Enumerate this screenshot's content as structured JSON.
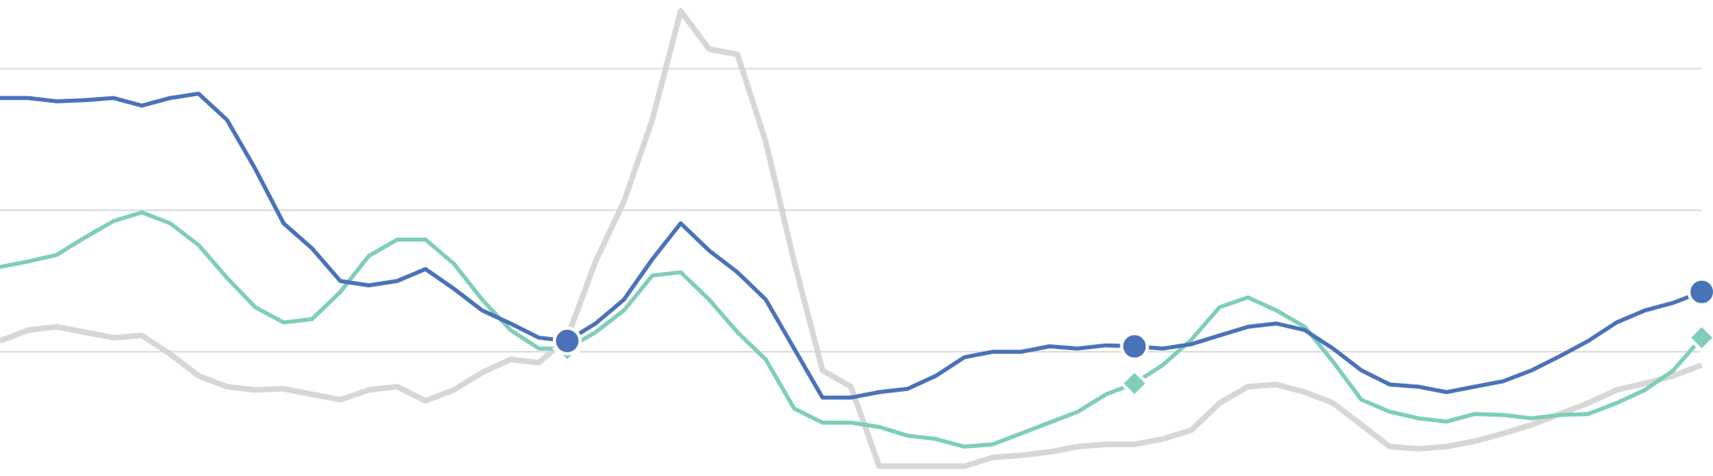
{
  "chart_data": {
    "type": "line",
    "categories": [
      null,
      null,
      null,
      null,
      null,
      null,
      null,
      null,
      null,
      null,
      null,
      null,
      null,
      null,
      null,
      null,
      null,
      null,
      null,
      null,
      null,
      null,
      null,
      null,
      null,
      null,
      null,
      null,
      null,
      null,
      null,
      null,
      null,
      null,
      null,
      null,
      null,
      null,
      null,
      null,
      null,
      null,
      null,
      null,
      null,
      null,
      null,
      null,
      null,
      null,
      null,
      null,
      null,
      null,
      null,
      null,
      null,
      null,
      null,
      null,
      null
    ],
    "ylim": [
      0,
      437
    ],
    "yticks": [
      114,
      244,
      374
    ],
    "grid": true,
    "series": [
      {
        "color": "#d3d3d3",
        "width": 7,
        "opacity": 0.9,
        "values": [
          124,
          134,
          137,
          132,
          127,
          129,
          112,
          92,
          82,
          79,
          80,
          75,
          70,
          79,
          82,
          69,
          79,
          95,
          107,
          104,
          127,
          197,
          252,
          327,
          427,
          392,
          387,
          307,
          197,
          97,
          82,
          9,
          9,
          9,
          9,
          17,
          19,
          22,
          27,
          29,
          29,
          34,
          42,
          67,
          82,
          84,
          77,
          67,
          47,
          27,
          25,
          27,
          32,
          39,
          47,
          57,
          67,
          79,
          85,
          92,
          102
        ]
      },
      {
        "color": "#7fcdbb",
        "width": 5,
        "opacity": 1,
        "markers": [
          20,
          40,
          60
        ],
        "marker": "diamond",
        "values": [
          192,
          197,
          203,
          219,
          234,
          242,
          232,
          212,
          182,
          155,
          141,
          144,
          169,
          202,
          217,
          217,
          195,
          162,
          134,
          117,
          117,
          132,
          152,
          184,
          187,
          162,
          132,
          107,
          62,
          49,
          49,
          45,
          37,
          34,
          27,
          29,
          39,
          49,
          59,
          75,
          85,
          102,
          125,
          155,
          164,
          152,
          137,
          105,
          70,
          59,
          53,
          50,
          57,
          56,
          53,
          56,
          57,
          67,
          79,
          97,
          127
        ]
      },
      {
        "color": "#4a72b8",
        "width": 5,
        "opacity": 1,
        "markers": [
          20,
          40,
          60
        ],
        "marker": "circle",
        "values": [
          347,
          347,
          344,
          345,
          347,
          340,
          347,
          351,
          327,
          282,
          232,
          209,
          179,
          175,
          179,
          190,
          172,
          152,
          140,
          127,
          124,
          140,
          162,
          199,
          232,
          207,
          187,
          162,
          117,
          72,
          72,
          77,
          80,
          92,
          109,
          114,
          114,
          119,
          117,
          120,
          119,
          117,
          121,
          129,
          137,
          140,
          134,
          117,
          97,
          84,
          82,
          77,
          82,
          87,
          97,
          110,
          124,
          141,
          152,
          159,
          169
        ]
      }
    ]
  }
}
